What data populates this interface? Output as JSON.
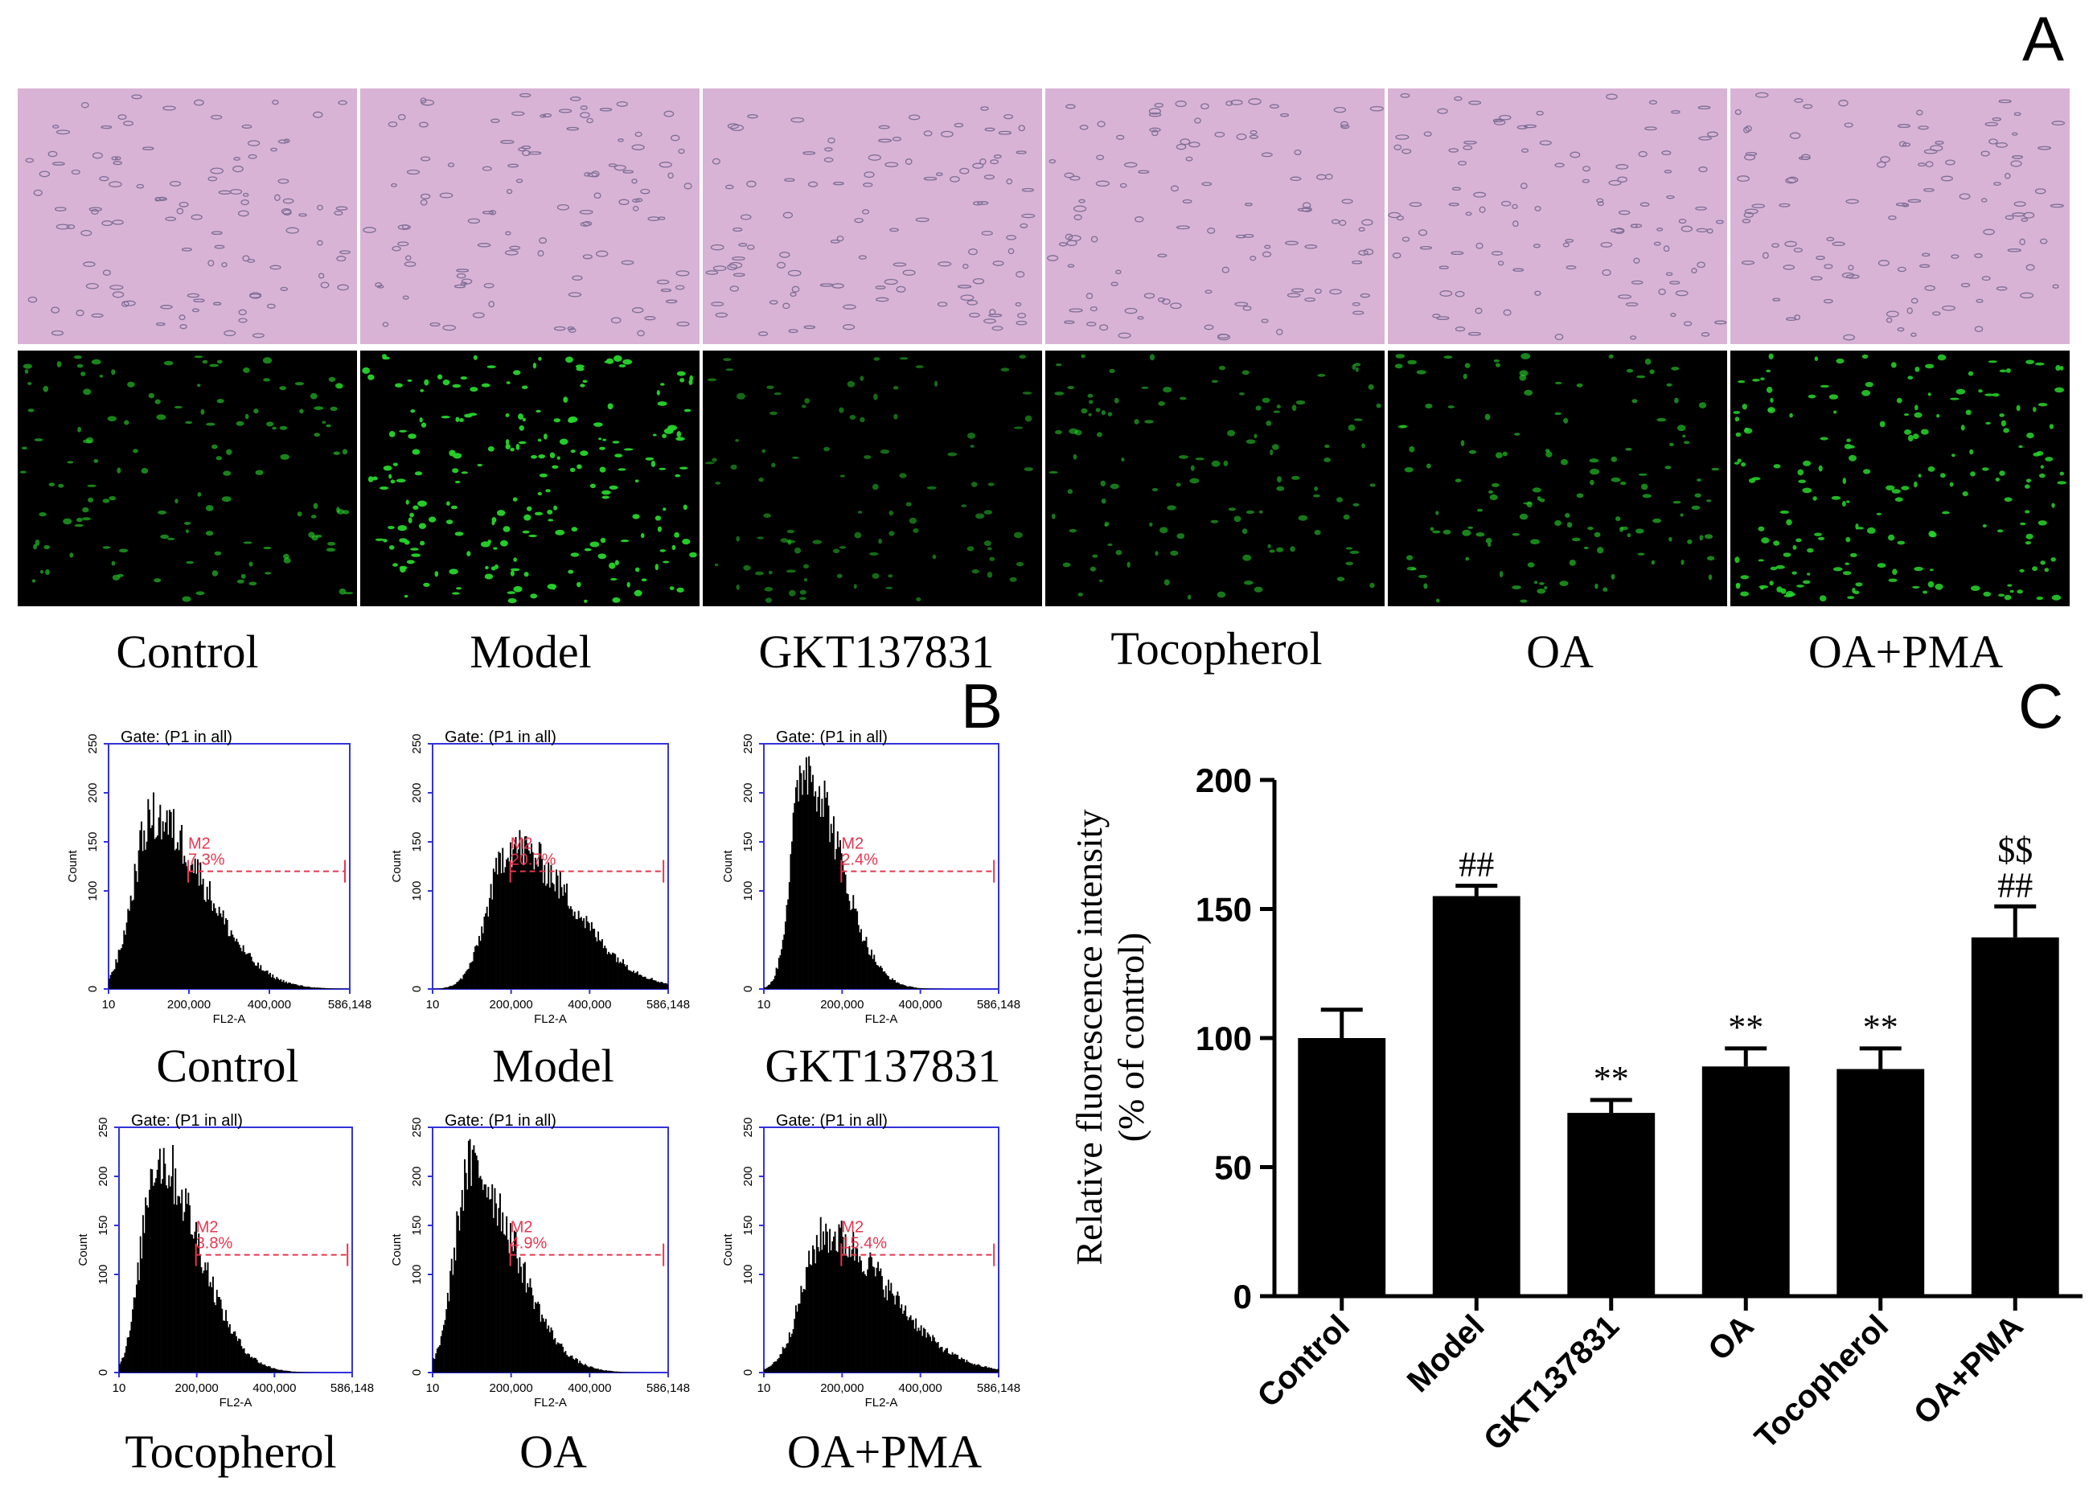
{
  "panel_letters": {
    "a": "A",
    "b": "B",
    "c": "C"
  },
  "microscopy": {
    "groups": [
      "Control",
      "Model",
      "GKT137831",
      "Tocopherol",
      "OA",
      "OA+PMA"
    ],
    "brightfield_bg": "#d9b3d6",
    "fluorescence_bg": "#000000",
    "cell_color": "#27d62a",
    "fluorescence_intensity": [
      0.45,
      1.0,
      0.25,
      0.35,
      0.45,
      0.85
    ]
  },
  "histograms": {
    "gate_label": "Gate: (P1 in all)",
    "x_axis_label": "FL2-A",
    "y_axis_label": "Count",
    "x_ticks": [
      "10",
      "200,000",
      "400,000",
      "586,148"
    ],
    "y_ticks": [
      "0",
      "100",
      "150",
      "200",
      "250"
    ],
    "marker_label": "M2",
    "axis_color": "#3333dd",
    "marker_color": "#e8364f",
    "panels": [
      {
        "caption": "Control",
        "y_tick_labels": [
          "0",
          "100",
          "150",
          "200",
          "250"
        ],
        "m2_percent": "7.3%",
        "peak_count": 180,
        "peak_frac": 0.18,
        "spread": 0.22
      },
      {
        "caption": "Model",
        "y_tick_labels": [
          "0",
          "100",
          "150",
          "200",
          "250"
        ],
        "m2_percent": "20.7%",
        "peak_count": 150,
        "peak_frac": 0.33,
        "spread": 0.26
      },
      {
        "caption": "GKT137831",
        "y_tick_labels": [
          "0",
          "100",
          "150",
          "200",
          "250"
        ],
        "m2_percent": "2.4%",
        "peak_count": 235,
        "peak_frac": 0.17,
        "spread": 0.15
      },
      {
        "caption": "Tocopherol",
        "y_tick_labels": [
          "0",
          "100",
          "150",
          "200",
          "250"
        ],
        "m2_percent": "3.8%",
        "peak_count": 225,
        "peak_frac": 0.16,
        "spread": 0.18
      },
      {
        "caption": "OA",
        "y_tick_labels": [
          "0",
          "100",
          "150",
          "200",
          "250"
        ],
        "m2_percent": "4.9%",
        "peak_count": 215,
        "peak_frac": 0.16,
        "spread": 0.19
      },
      {
        "caption": "OA+PMA",
        "y_tick_labels": [
          "0",
          "100",
          "150",
          "200",
          "250"
        ],
        "m2_percent": "15.4%",
        "peak_count": 145,
        "peak_frac": 0.26,
        "spread": 0.27
      }
    ]
  },
  "chart_data": {
    "type": "bar",
    "categories": [
      "Control",
      "Model",
      "GKT137831",
      "OA",
      "Tocopherol",
      "OA+PMA"
    ],
    "values": [
      100,
      155,
      71,
      89,
      88,
      139
    ],
    "errors": [
      11,
      4,
      5,
      7,
      8,
      12
    ],
    "annotations": [
      [],
      [
        "##"
      ],
      [
        "**"
      ],
      [
        "**"
      ],
      [
        "**"
      ],
      [
        "##",
        "$$"
      ]
    ],
    "ylabel_line1": "Relative fluorescence intensity",
    "ylabel_line2": "(% of control)",
    "ylim": [
      0,
      200
    ],
    "y_ticks": [
      0,
      50,
      100,
      150,
      200
    ],
    "bar_color": "#000000",
    "grid": false
  }
}
